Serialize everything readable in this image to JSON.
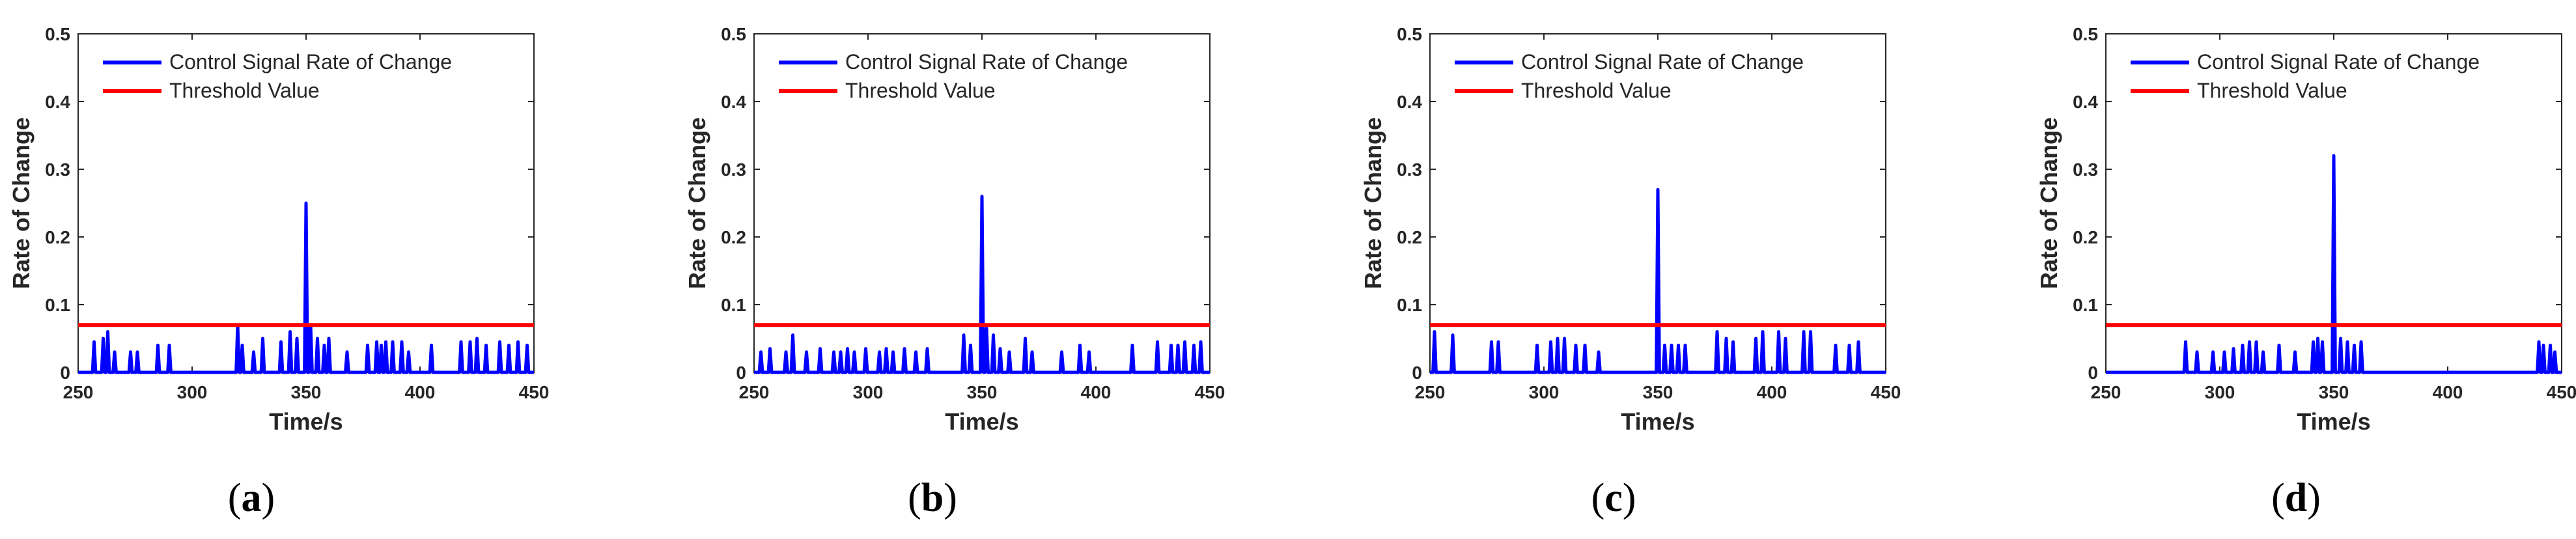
{
  "figure": {
    "panels": [
      {
        "id": "a",
        "caption_open": "(",
        "caption_letter": "a",
        "caption_close": ")"
      },
      {
        "id": "b",
        "caption_open": "(",
        "caption_letter": "b",
        "caption_close": ")"
      },
      {
        "id": "c",
        "caption_open": "(",
        "caption_letter": "c",
        "caption_close": ")"
      },
      {
        "id": "d",
        "caption_open": "(",
        "caption_letter": "d",
        "caption_close": ")"
      }
    ]
  },
  "colors": {
    "signal": "#0000ff",
    "threshold": "#ff0000",
    "axis": "#262626",
    "text": "#262626"
  },
  "chart_data": [
    {
      "type": "line",
      "panel": "a",
      "xlabel": "Time/s",
      "ylabel": "Rate of Change",
      "xlim": [
        250,
        450
      ],
      "ylim": [
        0,
        0.5
      ],
      "xticks": [
        250,
        300,
        350,
        400,
        450
      ],
      "yticks": [
        0,
        0.1,
        0.2,
        0.3,
        0.4,
        0.5
      ],
      "ytick_labels": [
        "0",
        "0.1",
        "0.2",
        "0.3",
        "0.4",
        "0.5"
      ],
      "legend_position": "top-left",
      "series": [
        {
          "name": "Control Signal Rate of Change",
          "color": "#0000ff",
          "spikes": [
            [
              257,
              0.045
            ],
            [
              261,
              0.05
            ],
            [
              263,
              0.06
            ],
            [
              266,
              0.03
            ],
            [
              273,
              0.03
            ],
            [
              276,
              0.03
            ],
            [
              285,
              0.04
            ],
            [
              290,
              0.04
            ],
            [
              320,
              0.07
            ],
            [
              322,
              0.04
            ],
            [
              327,
              0.03
            ],
            [
              331,
              0.05
            ],
            [
              339,
              0.045
            ],
            [
              343,
              0.06
            ],
            [
              346,
              0.05
            ],
            [
              350,
              0.25
            ],
            [
              352,
              0.07
            ],
            [
              355,
              0.05
            ],
            [
              358,
              0.04
            ],
            [
              360,
              0.05
            ],
            [
              368,
              0.03
            ],
            [
              377,
              0.04
            ],
            [
              381,
              0.045
            ],
            [
              383,
              0.04
            ],
            [
              385,
              0.045
            ],
            [
              388,
              0.045
            ],
            [
              392,
              0.045
            ],
            [
              395,
              0.03
            ],
            [
              405,
              0.04
            ],
            [
              418,
              0.045
            ],
            [
              422,
              0.045
            ],
            [
              425,
              0.05
            ],
            [
              429,
              0.04
            ],
            [
              435,
              0.045
            ],
            [
              439,
              0.04
            ],
            [
              443,
              0.045
            ],
            [
              447,
              0.04
            ]
          ]
        },
        {
          "name": "Threshold Value",
          "color": "#ff0000",
          "constant": 0.07
        }
      ]
    },
    {
      "type": "line",
      "panel": "b",
      "xlabel": "Time/s",
      "ylabel": "Rate of Change",
      "xlim": [
        250,
        450
      ],
      "ylim": [
        0,
        0.5
      ],
      "xticks": [
        250,
        300,
        350,
        400,
        450
      ],
      "yticks": [
        0,
        0.1,
        0.2,
        0.3,
        0.4,
        0.5
      ],
      "ytick_labels": [
        "0",
        "0.1",
        "0.2",
        "0.3",
        "0.4",
        "0.5"
      ],
      "legend_position": "top-left",
      "series": [
        {
          "name": "Control Signal Rate of Change",
          "color": "#0000ff",
          "spikes": [
            [
              253,
              0.03
            ],
            [
              257,
              0.035
            ],
            [
              264,
              0.03
            ],
            [
              267,
              0.055
            ],
            [
              273,
              0.03
            ],
            [
              279,
              0.035
            ],
            [
              285,
              0.03
            ],
            [
              288,
              0.03
            ],
            [
              291,
              0.035
            ],
            [
              294,
              0.03
            ],
            [
              299,
              0.035
            ],
            [
              305,
              0.03
            ],
            [
              308,
              0.035
            ],
            [
              311,
              0.03
            ],
            [
              316,
              0.035
            ],
            [
              321,
              0.03
            ],
            [
              326,
              0.035
            ],
            [
              342,
              0.055
            ],
            [
              345,
              0.04
            ],
            [
              350,
              0.26
            ],
            [
              352,
              0.065
            ],
            [
              355,
              0.055
            ],
            [
              358,
              0.035
            ],
            [
              362,
              0.03
            ],
            [
              369,
              0.05
            ],
            [
              372,
              0.03
            ],
            [
              385,
              0.03
            ],
            [
              393,
              0.04
            ],
            [
              397,
              0.03
            ],
            [
              416,
              0.04
            ],
            [
              427,
              0.045
            ],
            [
              433,
              0.04
            ],
            [
              436,
              0.04
            ],
            [
              439,
              0.045
            ],
            [
              443,
              0.04
            ],
            [
              446,
              0.045
            ]
          ]
        },
        {
          "name": "Threshold Value",
          "color": "#ff0000",
          "constant": 0.07
        }
      ]
    },
    {
      "type": "line",
      "panel": "c",
      "xlabel": "Time/s",
      "ylabel": "Rate of Change",
      "xlim": [
        250,
        450
      ],
      "ylim": [
        0,
        0.5
      ],
      "xticks": [
        250,
        300,
        350,
        400,
        450
      ],
      "yticks": [
        0,
        0.1,
        0.2,
        0.3,
        0.4,
        0.5
      ],
      "ytick_labels": [
        "0",
        "0.1",
        "0.2",
        "0.3",
        "0.4",
        "0.5"
      ],
      "legend_position": "top-left",
      "series": [
        {
          "name": "Control Signal Rate of Change",
          "color": "#0000ff",
          "spikes": [
            [
              252,
              0.06
            ],
            [
              260,
              0.055
            ],
            [
              277,
              0.045
            ],
            [
              280,
              0.045
            ],
            [
              297,
              0.04
            ],
            [
              303,
              0.045
            ],
            [
              306,
              0.05
            ],
            [
              309,
              0.05
            ],
            [
              314,
              0.04
            ],
            [
              318,
              0.04
            ],
            [
              324,
              0.03
            ],
            [
              350,
              0.27
            ],
            [
              353,
              0.04
            ],
            [
              356,
              0.04
            ],
            [
              359,
              0.04
            ],
            [
              362,
              0.04
            ],
            [
              376,
              0.06
            ],
            [
              380,
              0.05
            ],
            [
              383,
              0.045
            ],
            [
              393,
              0.05
            ],
            [
              396,
              0.06
            ],
            [
              403,
              0.06
            ],
            [
              406,
              0.05
            ],
            [
              414,
              0.06
            ],
            [
              417,
              0.06
            ],
            [
              428,
              0.04
            ],
            [
              434,
              0.04
            ],
            [
              438,
              0.045
            ]
          ]
        },
        {
          "name": "Threshold Value",
          "color": "#ff0000",
          "constant": 0.07
        }
      ]
    },
    {
      "type": "line",
      "panel": "d",
      "xlabel": "Time/s",
      "ylabel": "Rate of Change",
      "xlim": [
        250,
        450
      ],
      "ylim": [
        0,
        0.5
      ],
      "xticks": [
        250,
        300,
        350,
        400,
        450
      ],
      "yticks": [
        0,
        0.1,
        0.2,
        0.3,
        0.4,
        0.5
      ],
      "ytick_labels": [
        "0",
        "0.1",
        "0.2",
        "0.3",
        "0.4",
        "0.5"
      ],
      "legend_position": "top-left",
      "series": [
        {
          "name": "Control Signal Rate of Change",
          "color": "#0000ff",
          "spikes": [
            [
              285,
              0.045
            ],
            [
              290,
              0.03
            ],
            [
              297,
              0.03
            ],
            [
              302,
              0.03
            ],
            [
              306,
              0.035
            ],
            [
              310,
              0.04
            ],
            [
              313,
              0.045
            ],
            [
              316,
              0.045
            ],
            [
              319,
              0.03
            ],
            [
              326,
              0.04
            ],
            [
              333,
              0.03
            ],
            [
              341,
              0.045
            ],
            [
              343,
              0.05
            ],
            [
              345,
              0.045
            ],
            [
              350,
              0.32
            ],
            [
              353,
              0.05
            ],
            [
              356,
              0.045
            ],
            [
              359,
              0.04
            ],
            [
              362,
              0.045
            ],
            [
              440,
              0.045
            ],
            [
              442,
              0.04
            ],
            [
              445,
              0.04
            ],
            [
              447,
              0.03
            ]
          ]
        },
        {
          "name": "Threshold Value",
          "color": "#ff0000",
          "constant": 0.07
        }
      ]
    }
  ]
}
